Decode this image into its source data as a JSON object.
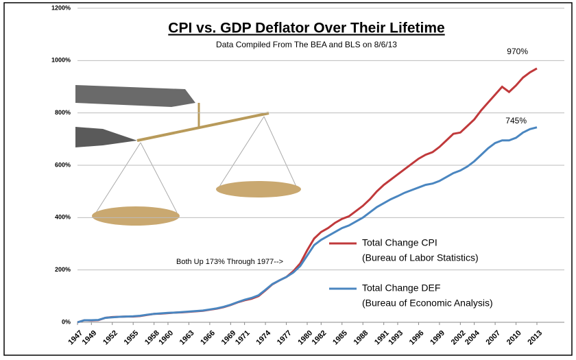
{
  "chart_data": {
    "type": "line",
    "title": "CPI vs. GDP Deflator Over Their Lifetime",
    "subtitle": "Data Compiled From The BEA and BLS on 8/6/13",
    "x": [
      1947,
      1948,
      1949,
      1950,
      1951,
      1952,
      1953,
      1954,
      1955,
      1956,
      1957,
      1958,
      1959,
      1960,
      1961,
      1962,
      1963,
      1964,
      1965,
      1966,
      1967,
      1968,
      1969,
      1970,
      1971,
      1972,
      1973,
      1974,
      1975,
      1976,
      1977,
      1978,
      1979,
      1980,
      1981,
      1982,
      1983,
      1984,
      1985,
      1986,
      1987,
      1988,
      1989,
      1990,
      1991,
      1992,
      1993,
      1994,
      1995,
      1996,
      1997,
      1998,
      1999,
      2000,
      2001,
      2002,
      2003,
      2004,
      2005,
      2006,
      2007,
      2008,
      2009,
      2010,
      2011,
      2012,
      2013
    ],
    "series": [
      {
        "name": "Total Change CPI",
        "note": "(Bureau of Labor Statistics)",
        "color": "#c0393b",
        "values": [
          0,
          8,
          7,
          8,
          17,
          20,
          21,
          22,
          22,
          24,
          28,
          32,
          33,
          35,
          37,
          38,
          40,
          42,
          44,
          48,
          52,
          58,
          66,
          76,
          84,
          90,
          100,
          122,
          145,
          160,
          173,
          195,
          225,
          275,
          320,
          345,
          360,
          380,
          395,
          405,
          425,
          445,
          470,
          500,
          525,
          545,
          565,
          585,
          605,
          625,
          640,
          650,
          670,
          695,
          720,
          725,
          750,
          775,
          810,
          840,
          870,
          900,
          880,
          905,
          935,
          955,
          970
        ]
      },
      {
        "name": "Total Change DEF",
        "note": "(Bureau of Economic Analysis)",
        "color": "#4a86c0",
        "values": [
          0,
          8,
          8,
          9,
          17,
          19,
          21,
          22,
          23,
          25,
          29,
          32,
          34,
          36,
          37,
          39,
          41,
          43,
          45,
          49,
          53,
          59,
          67,
          77,
          86,
          93,
          103,
          124,
          146,
          160,
          173,
          190,
          215,
          255,
          295,
          315,
          330,
          345,
          360,
          370,
          385,
          400,
          420,
          440,
          455,
          470,
          482,
          495,
          505,
          515,
          525,
          530,
          540,
          555,
          570,
          580,
          595,
          615,
          640,
          665,
          685,
          695,
          695,
          705,
          725,
          738,
          745
        ]
      }
    ],
    "xlim": [
      1947,
      2013
    ],
    "xticks": [
      1947,
      1949,
      1952,
      1955,
      1958,
      1960,
      1963,
      1966,
      1969,
      1971,
      1974,
      1977,
      1980,
      1982,
      1985,
      1988,
      1991,
      1993,
      1996,
      1999,
      2002,
      2004,
      2007,
      2010,
      2013
    ],
    "ylim": [
      0,
      1200
    ],
    "yticks": [
      {
        "value": 0,
        "label": "0%"
      },
      {
        "value": 200,
        "label": "200%"
      },
      {
        "value": 400,
        "label": "400%"
      },
      {
        "value": 600,
        "label": "600%"
      },
      {
        "value": 800,
        "label": "800%"
      },
      {
        "value": 1000,
        "label": "1000%"
      },
      {
        "value": 1200,
        "label": "1200%"
      }
    ],
    "grid": true,
    "annotations": [
      {
        "text": "970%"
      },
      {
        "text": "745%"
      },
      {
        "text": "Both Up 173% Through 1977-->"
      }
    ]
  }
}
